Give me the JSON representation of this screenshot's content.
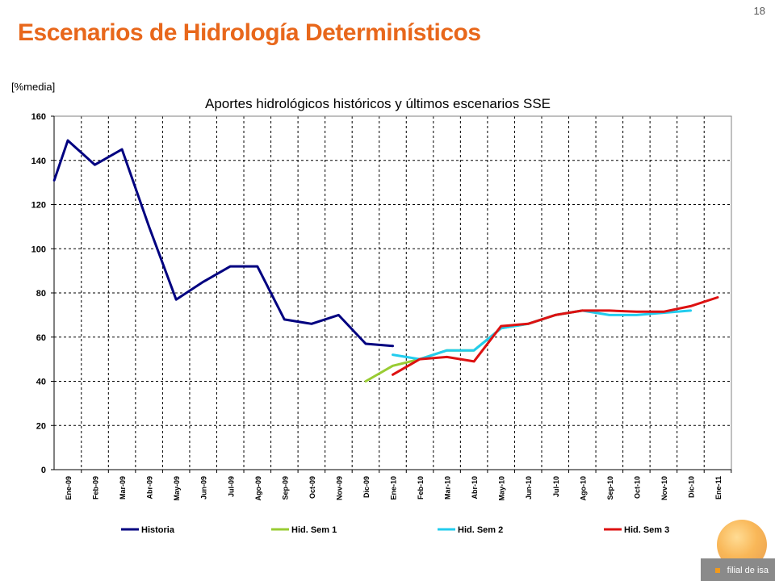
{
  "slide": {
    "number": "18",
    "title": "Escenarios de Hidrología Determinísticos",
    "unit": "[%media]"
  },
  "brand": {
    "footer_text": "filial de isa"
  },
  "chart_data": {
    "type": "line",
    "title": "Aportes hidrológicos históricos y últimos escenarios SSE",
    "xlabel": "",
    "ylabel": "[%media]",
    "ylim": [
      0,
      160
    ],
    "yticks": [
      0,
      20,
      40,
      60,
      80,
      100,
      120,
      140,
      160
    ],
    "grid": true,
    "legend_position": "bottom",
    "categories": [
      "Ene-09",
      "Feb-09",
      "Mar-09",
      "Abr-09",
      "May-09",
      "Jun-09",
      "Jul-09",
      "Ago-09",
      "Sep-09",
      "Oct-09",
      "Nov-09",
      "Dic-09",
      "Ene-10",
      "Feb-10",
      "Mar-10",
      "Abr-10",
      "May-10",
      "Jun-10",
      "Jul-10",
      "Ago-10",
      "Sep-10",
      "Oct-10",
      "Nov-10",
      "Dic-10",
      "Ene-11"
    ],
    "series": [
      {
        "name": "Historia",
        "color": "#000080",
        "points": [
          [
            -0.5,
            131
          ],
          [
            0,
            149
          ],
          [
            1,
            138
          ],
          [
            2,
            145
          ],
          [
            3,
            110
          ],
          [
            4,
            77
          ],
          [
            5,
            85
          ],
          [
            6,
            92
          ],
          [
            7,
            92
          ],
          [
            8,
            68
          ],
          [
            9,
            66
          ],
          [
            10,
            70
          ],
          [
            11,
            57
          ],
          [
            12,
            56
          ]
        ]
      },
      {
        "name": "Hid. Sem 1",
        "color": "#99cc33",
        "points": [
          [
            11,
            40
          ],
          [
            12,
            47
          ],
          [
            13,
            50
          ],
          [
            14,
            54
          ],
          [
            15,
            54
          ],
          [
            16,
            64
          ],
          [
            17,
            66
          ],
          [
            18,
            70
          ],
          [
            19,
            72
          ]
        ]
      },
      {
        "name": "Hid. Sem 2",
        "color": "#22ccee",
        "points": [
          [
            12,
            52
          ],
          [
            13,
            50
          ],
          [
            14,
            54
          ],
          [
            15,
            54
          ],
          [
            16,
            64
          ],
          [
            17,
            66
          ],
          [
            18,
            70
          ],
          [
            19,
            72
          ],
          [
            20,
            70
          ],
          [
            21,
            70
          ],
          [
            22,
            71
          ],
          [
            23,
            72
          ]
        ]
      },
      {
        "name": "Hid. Sem 3",
        "color": "#dd1111",
        "points": [
          [
            12,
            43
          ],
          [
            13,
            50
          ],
          [
            14,
            51
          ],
          [
            15,
            49
          ],
          [
            16,
            65
          ],
          [
            17,
            66
          ],
          [
            18,
            70
          ],
          [
            19,
            72
          ],
          [
            20,
            72
          ],
          [
            21,
            71.5
          ],
          [
            22,
            71.5
          ],
          [
            23,
            74
          ],
          [
            24,
            78
          ]
        ]
      }
    ]
  }
}
